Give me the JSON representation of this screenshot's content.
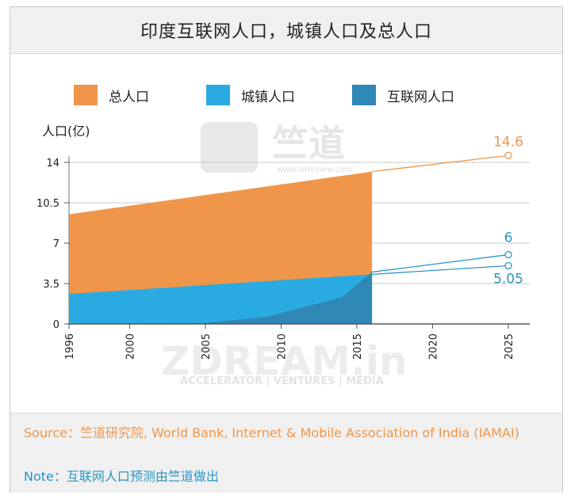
{
  "title": "印度互联网人口，城镇人口及总人口",
  "legend": [
    {
      "label": "总人口",
      "color": "#f0964a"
    },
    {
      "label": "城镇人口",
      "color": "#29abe2"
    },
    {
      "label": "互联网人口",
      "color": "#2f87b5"
    }
  ],
  "watermark": {
    "top_text": "竺道",
    "top_url": "www.zdreview.com",
    "main_text": "ZDREAM.in",
    "sub_text": "ACCELERATOR | VENTURES | MEDIA"
  },
  "footer": {
    "source": "Source：竺道研究院, World Bank, Internet & Mobile Association of India (IAMAI)",
    "note": "Note：互联网人口预测由竺道做出"
  },
  "chart_data": {
    "type": "area",
    "ylabel": "人口(亿)",
    "ylim": [
      0,
      15
    ],
    "yticks": [
      0,
      3.5,
      7,
      10.5,
      14
    ],
    "xlim": [
      1996,
      2026
    ],
    "xticks": [
      1996,
      2000,
      2005,
      2010,
      2015,
      2020,
      2025
    ],
    "series": [
      {
        "name": "总人口",
        "color": "#f0964a",
        "x": [
          1996,
          2016
        ],
        "values": [
          9.5,
          13.2
        ]
      },
      {
        "name": "城镇人口",
        "color": "#29abe2",
        "x": [
          1996,
          2016
        ],
        "values": [
          2.6,
          4.3
        ]
      },
      {
        "name": "互联网人口",
        "color": "#2f87b5",
        "x": [
          1996,
          2005,
          2009,
          2014,
          2016
        ],
        "values": [
          0.0,
          0.1,
          0.6,
          2.3,
          4.5
        ]
      }
    ],
    "projections": [
      {
        "name": "总人口",
        "color": "#f0964a",
        "x": [
          2016,
          2025
        ],
        "values": [
          13.2,
          14.6
        ]
      },
      {
        "name": "互联网人口",
        "color": "#2a95c4",
        "x": [
          2016,
          2025
        ],
        "values": [
          4.5,
          6
        ]
      },
      {
        "name": "城镇人口",
        "color": "#2a95c4",
        "x": [
          2016,
          2025
        ],
        "values": [
          4.3,
          5.05
        ]
      }
    ],
    "annotations": [
      {
        "text": "14.6",
        "x": 2025,
        "y": 14.6,
        "color": "#f0964a"
      },
      {
        "text": "6",
        "x": 2025,
        "y": 6,
        "color": "#2a95c4"
      },
      {
        "text": "5.05",
        "x": 2025,
        "y": 5.05,
        "color": "#2a95c4"
      }
    ]
  }
}
